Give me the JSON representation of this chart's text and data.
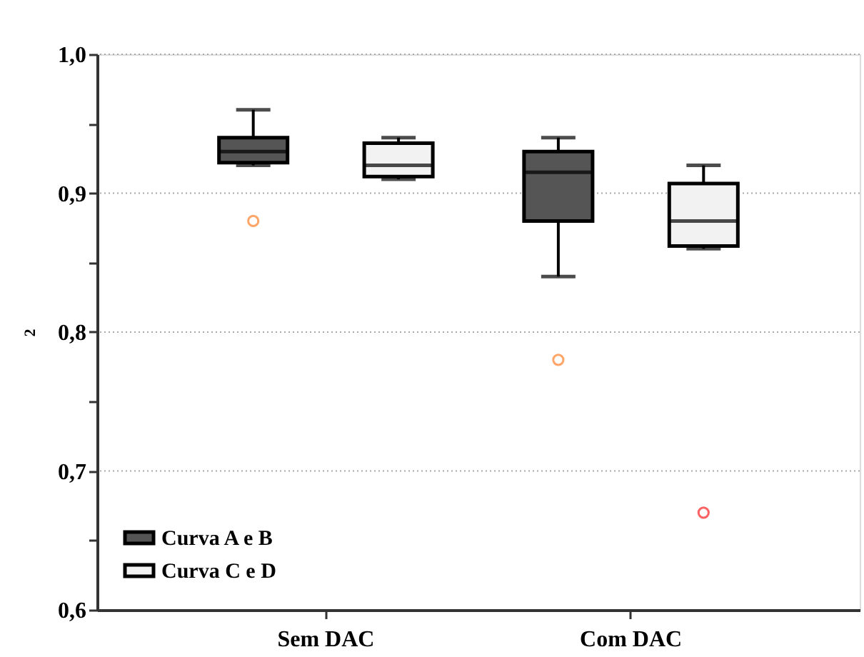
{
  "chart_data": {
    "type": "box",
    "ylabel": "2",
    "categories": [
      "Sem DAC",
      "Com DAC"
    ],
    "series": [
      {
        "name": "Curva A e B",
        "color": "#555555",
        "boxes": [
          {
            "low": 0.92,
            "q1": 0.922,
            "median": 0.93,
            "q3": 0.94,
            "high": 0.96,
            "outliers": [
              0.88
            ]
          },
          {
            "low": 0.84,
            "q1": 0.88,
            "median": 0.915,
            "q3": 0.93,
            "high": 0.94,
            "outliers": [
              0.78
            ]
          }
        ]
      },
      {
        "name": "Curva C e D",
        "color": "#f2f2f2",
        "boxes": [
          {
            "low": 0.91,
            "q1": 0.912,
            "median": 0.92,
            "q3": 0.936,
            "high": 0.94
          },
          {
            "low": 0.86,
            "q1": 0.862,
            "median": 0.88,
            "q3": 0.907,
            "high": 0.92,
            "outliers": [
              0.67
            ]
          }
        ]
      }
    ],
    "ylim": [
      0.6,
      1.0
    ],
    "yticks": [
      {
        "value": 0.6,
        "label": "0,6"
      },
      {
        "value": 0.65,
        "label": null
      },
      {
        "value": 0.7,
        "label": "0,7"
      },
      {
        "value": 0.75,
        "label": null
      },
      {
        "value": 0.8,
        "label": "0,8"
      },
      {
        "value": 0.85,
        "label": null
      },
      {
        "value": 0.9,
        "label": "0,9"
      },
      {
        "value": 0.95,
        "label": null
      },
      {
        "value": 1.0,
        "label": "1,0"
      }
    ],
    "grid": "y",
    "legend": "bottom left"
  }
}
